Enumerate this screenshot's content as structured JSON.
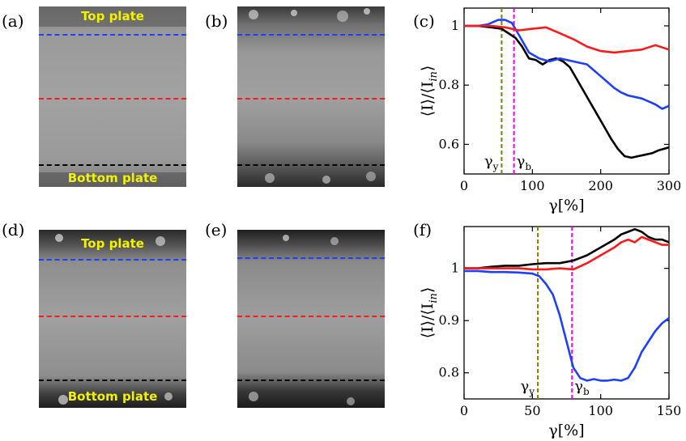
{
  "panel_labels": {
    "a": "(a)",
    "b": "(b)",
    "c": "(c)",
    "d": "(d)",
    "e": "(e)",
    "f": "(f)"
  },
  "photos": {
    "a": {
      "top_text": "Top plate",
      "bottom_text": "Bottom plate"
    },
    "d": {
      "top_text": "Top plate",
      "bottom_text": "Bottom plate"
    }
  },
  "line_colors": {
    "top": "#1f3fff",
    "middle": "#ff1a1a",
    "bottom": "#000000"
  },
  "chart_data": [
    {
      "type": "line",
      "panel": "c",
      "xlabel": "γ[%]",
      "ylabel": "⟨I⟩/⟨I_in⟩",
      "xlim": [
        0,
        300
      ],
      "ylim": [
        0.5,
        1.06
      ],
      "xticks": [
        "0",
        "100",
        "200",
        "300"
      ],
      "yticks": [
        "0.6",
        "0.8",
        "1"
      ],
      "vlines": [
        {
          "name": "gamma_y",
          "x": 55,
          "color": "#808000",
          "label": "γy"
        },
        {
          "name": "gamma_b",
          "x": 73,
          "color": "#ff00ff",
          "label": "γb"
        }
      ],
      "series": [
        {
          "name": "black",
          "color": "#000000",
          "x": [
            0,
            20,
            40,
            55,
            65,
            75,
            85,
            95,
            105,
            115,
            125,
            135,
            145,
            155,
            165,
            175,
            185,
            195,
            205,
            215,
            225,
            235,
            245,
            255,
            265,
            275,
            285,
            300
          ],
          "values": [
            1.0,
            1.0,
            0.995,
            0.99,
            0.975,
            0.96,
            0.93,
            0.89,
            0.885,
            0.87,
            0.885,
            0.89,
            0.88,
            0.86,
            0.82,
            0.78,
            0.74,
            0.7,
            0.66,
            0.62,
            0.585,
            0.56,
            0.555,
            0.56,
            0.565,
            0.57,
            0.58,
            0.59
          ]
        },
        {
          "name": "blue",
          "color": "#1f3fff",
          "x": [
            0,
            20,
            35,
            50,
            60,
            70,
            80,
            95,
            110,
            125,
            140,
            160,
            180,
            190,
            200,
            210,
            220,
            230,
            240,
            250,
            260,
            270,
            280,
            290,
            300
          ],
          "values": [
            1.0,
            1.0,
            1.005,
            1.02,
            1.02,
            1.01,
            0.97,
            0.91,
            0.89,
            0.88,
            0.89,
            0.88,
            0.87,
            0.85,
            0.83,
            0.81,
            0.79,
            0.775,
            0.765,
            0.76,
            0.755,
            0.745,
            0.735,
            0.72,
            0.73
          ]
        },
        {
          "name": "red",
          "color": "#ff1a1a",
          "x": [
            0,
            20,
            40,
            60,
            80,
            100,
            120,
            140,
            160,
            180,
            200,
            220,
            240,
            260,
            280,
            300
          ],
          "values": [
            1.0,
            1.0,
            1.0,
            0.995,
            0.985,
            0.99,
            0.995,
            0.975,
            0.955,
            0.93,
            0.915,
            0.91,
            0.915,
            0.92,
            0.935,
            0.92
          ]
        }
      ]
    },
    {
      "type": "line",
      "panel": "f",
      "xlabel": "γ[%]",
      "ylabel": "⟨I⟩/⟨I_in⟩",
      "xlim": [
        0,
        150
      ],
      "ylim": [
        0.75,
        1.08
      ],
      "xticks": [
        "0",
        "50",
        "100",
        "150"
      ],
      "yticks": [
        "0.8",
        "0.9",
        "1"
      ],
      "vlines": [
        {
          "name": "gamma_y",
          "x": 54,
          "color": "#808000",
          "label": "γy"
        },
        {
          "name": "gamma_b",
          "x": 79,
          "color": "#ff00ff",
          "label": "γb"
        }
      ],
      "series": [
        {
          "name": "black",
          "color": "#000000",
          "x": [
            0,
            10,
            20,
            30,
            40,
            50,
            60,
            70,
            80,
            90,
            100,
            110,
            115,
            120,
            125,
            130,
            135,
            140,
            145,
            150
          ],
          "values": [
            1.0,
            1.0,
            1.003,
            1.005,
            1.005,
            1.008,
            1.01,
            1.01,
            1.015,
            1.025,
            1.04,
            1.055,
            1.065,
            1.07,
            1.075,
            1.07,
            1.06,
            1.055,
            1.055,
            1.05
          ]
        },
        {
          "name": "red",
          "color": "#ff1a1a",
          "x": [
            0,
            10,
            20,
            30,
            40,
            50,
            60,
            70,
            80,
            90,
            100,
            110,
            115,
            120,
            125,
            130,
            135,
            140,
            145,
            150
          ],
          "values": [
            1.0,
            1.0,
            1.0,
            1.0,
            1.0,
            0.998,
            0.998,
            1.0,
            0.998,
            1.01,
            1.025,
            1.04,
            1.05,
            1.055,
            1.05,
            1.06,
            1.055,
            1.05,
            1.045,
            1.045
          ]
        },
        {
          "name": "blue",
          "color": "#1f3fff",
          "x": [
            0,
            10,
            20,
            30,
            40,
            50,
            55,
            60,
            65,
            70,
            75,
            80,
            85,
            90,
            95,
            100,
            105,
            110,
            115,
            120,
            125,
            130,
            135,
            140,
            145,
            150
          ],
          "values": [
            0.995,
            0.995,
            0.993,
            0.993,
            0.992,
            0.99,
            0.985,
            0.97,
            0.95,
            0.91,
            0.86,
            0.81,
            0.79,
            0.785,
            0.788,
            0.785,
            0.785,
            0.787,
            0.785,
            0.79,
            0.81,
            0.84,
            0.86,
            0.88,
            0.895,
            0.905
          ]
        }
      ]
    }
  ]
}
